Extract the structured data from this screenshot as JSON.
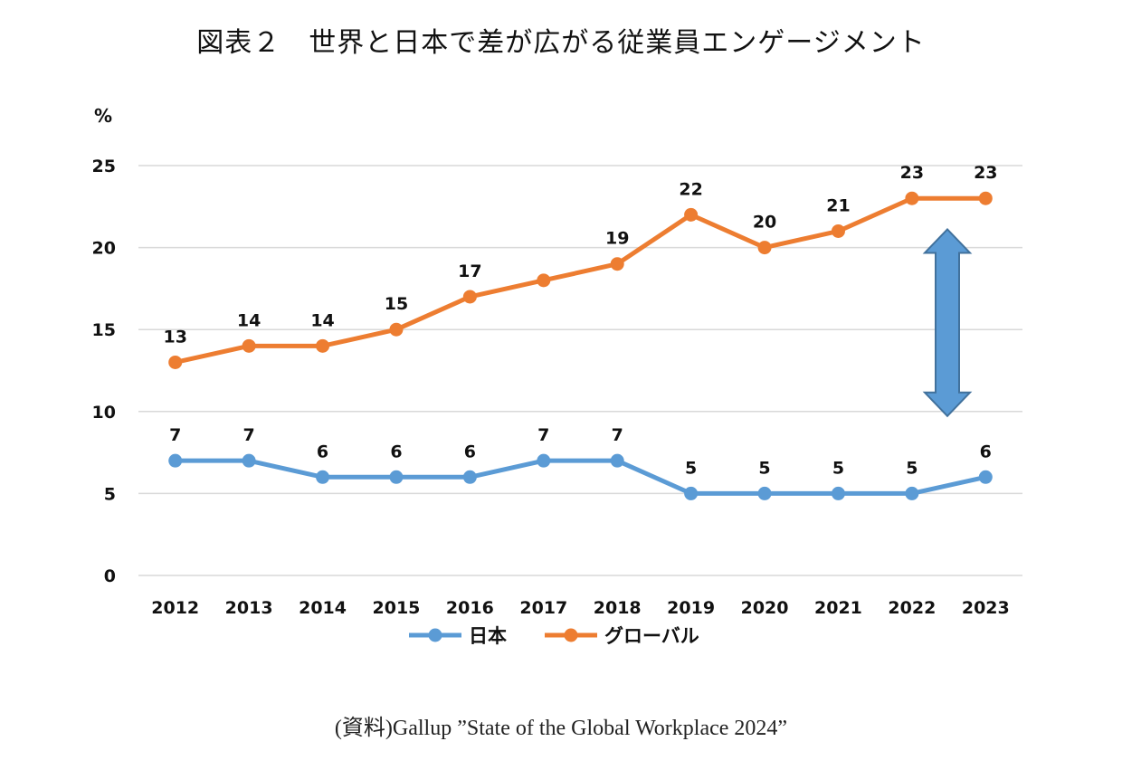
{
  "title": "図表２　世界と日本で差が広がる従業員エンゲージメント",
  "source": "(資料)Gallup ”State of the Global Workplace 2024”",
  "chart_data": {
    "type": "line",
    "title": "図表２　世界と日本で差が広がる従業員エンゲージメント",
    "xlabel": "",
    "ylabel": "%",
    "x": [
      "2012",
      "2013",
      "2014",
      "2015",
      "2016",
      "2017",
      "2018",
      "2019",
      "2020",
      "2021",
      "2022",
      "2023"
    ],
    "ylim": [
      0,
      25
    ],
    "yticks": [
      "0",
      "5",
      "10",
      "15",
      "20",
      "25"
    ],
    "grid": true,
    "legend_position": "bottom",
    "series": [
      {
        "name": "日本",
        "color": "#5B9BD5",
        "values": [
          7,
          7,
          6,
          6,
          6,
          7,
          7,
          5,
          5,
          5,
          5,
          6
        ],
        "labels": [
          "7",
          "7",
          "6",
          "6",
          "6",
          "7",
          "7",
          "5",
          "5",
          "5",
          "5",
          "6"
        ]
      },
      {
        "name": "グローバル",
        "color": "#ED7D31",
        "values": [
          13,
          14,
          14,
          15,
          17,
          18,
          19,
          22,
          20,
          21,
          23,
          23
        ],
        "labels": [
          "13",
          "14",
          "14",
          "15",
          "17",
          "",
          "19",
          "22",
          "20",
          "21",
          "23",
          "23"
        ]
      }
    ],
    "annotation": {
      "type": "double-arrow",
      "color": "#5B9BD5",
      "between_years": "2022-2023",
      "from_value": 10,
      "to_value": 21
    }
  }
}
